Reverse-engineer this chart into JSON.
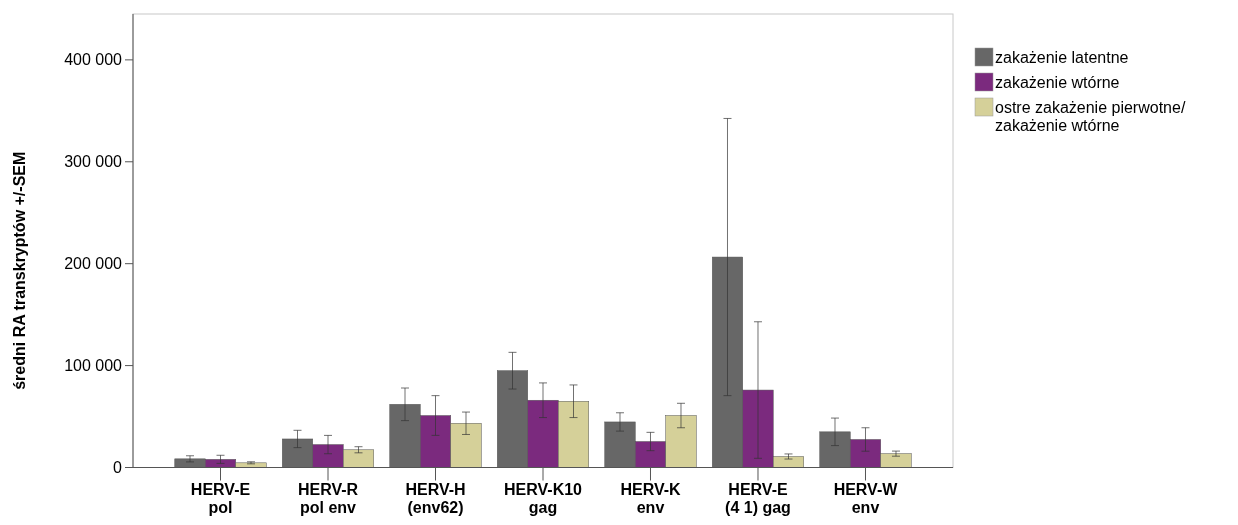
{
  "chart_data": {
    "type": "bar",
    "ylabel": "średni RA transkryptów +/-SEM",
    "categories": [
      "HERV-E pol",
      "HERV-R pol env",
      "HERV-H (env62)",
      "HERV-K10 gag",
      "HERV-K env",
      "HERV-E (4 1) gag",
      "HERV-W env"
    ],
    "series": [
      {
        "name": "zakażenie latentne",
        "color": "#676767",
        "values": [
          8500,
          28000,
          62000,
          95000,
          44700,
          206500,
          35000
        ],
        "errors": [
          3000,
          8500,
          16000,
          18000,
          9000,
          136000,
          13500
        ]
      },
      {
        "name": "zakażenie wtórne",
        "color": "#7b2a7e",
        "values": [
          8000,
          22500,
          51000,
          66000,
          25500,
          76000,
          27500
        ],
        "errors": [
          4000,
          9000,
          19500,
          17000,
          9000,
          67000,
          11500
        ]
      },
      {
        "name": "ostre zakażenie pierwotne/ zakażenie wtórne",
        "color": "#d5d099",
        "values": [
          4600,
          17400,
          43400,
          65000,
          51000,
          10800,
          13600
        ],
        "errors": [
          1000,
          3000,
          11000,
          16000,
          12000,
          2500,
          2500
        ]
      }
    ],
    "ylim": [
      0,
      445000
    ],
    "yticks": [
      {
        "value": 0,
        "label": "0"
      },
      {
        "value": 100000,
        "label": "100 000"
      },
      {
        "value": 200000,
        "label": "200 000"
      },
      {
        "value": 300000,
        "label": "300 000"
      },
      {
        "value": 400000,
        "label": "400 000"
      }
    ],
    "grid": false,
    "legend": "top right"
  }
}
